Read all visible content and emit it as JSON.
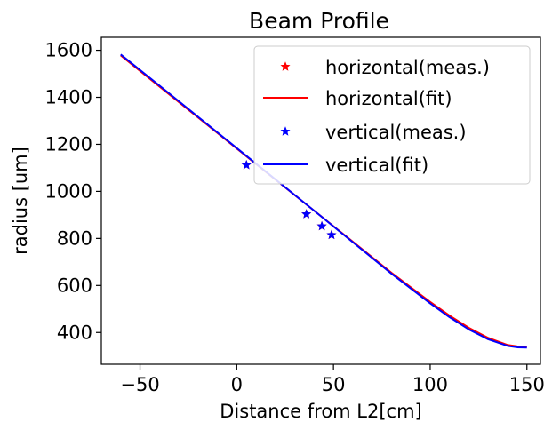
{
  "chart_data": {
    "type": "line",
    "title": "Beam Profile",
    "xlabel": "Distance from L2[cm]",
    "ylabel": "radius [um]",
    "xlim": [
      -70,
      157
    ],
    "ylim": [
      265,
      1655
    ],
    "xticks": [
      -50,
      0,
      50,
      100,
      150
    ],
    "xtick_labels": [
      "−50",
      "0",
      "50",
      "100",
      "150"
    ],
    "yticks": [
      400,
      600,
      800,
      1000,
      1200,
      1400,
      1600
    ],
    "ytick_labels": [
      "400",
      "600",
      "800",
      "1000",
      "1200",
      "1400",
      "1600"
    ],
    "grid": false,
    "legend_position": "top-right",
    "series": [
      {
        "name": "horizontal(meas.)",
        "kind": "markers",
        "marker": "star",
        "color": "#ff0000",
        "x": [
          5,
          36,
          44,
          49
        ],
        "y": [
          1112,
          903,
          852,
          815
        ]
      },
      {
        "name": "horizontal(fit)",
        "kind": "line",
        "color": "#ff0000",
        "x": [
          -60,
          -40,
          -20,
          0,
          20,
          40,
          60,
          80,
          100,
          110,
          120,
          130,
          140,
          145,
          150
        ],
        "y": [
          1578,
          1446,
          1314,
          1182,
          1050,
          918,
          786,
          654,
          530,
          472,
          420,
          377,
          347,
          341,
          339
        ]
      },
      {
        "name": "vertical(meas.)",
        "kind": "markers",
        "marker": "star",
        "color": "#0000ff",
        "x": [
          5,
          36,
          44,
          49
        ],
        "y": [
          1112,
          903,
          852,
          815
        ]
      },
      {
        "name": "vertical(fit)",
        "kind": "line",
        "color": "#0000ff",
        "x": [
          -60,
          -40,
          -20,
          0,
          20,
          40,
          60,
          80,
          100,
          110,
          120,
          130,
          140,
          145,
          150
        ],
        "y": [
          1582,
          1450,
          1317,
          1184,
          1051,
          918,
          784,
          650,
          524,
          465,
          413,
          371,
          343,
          337,
          336
        ]
      }
    ]
  }
}
